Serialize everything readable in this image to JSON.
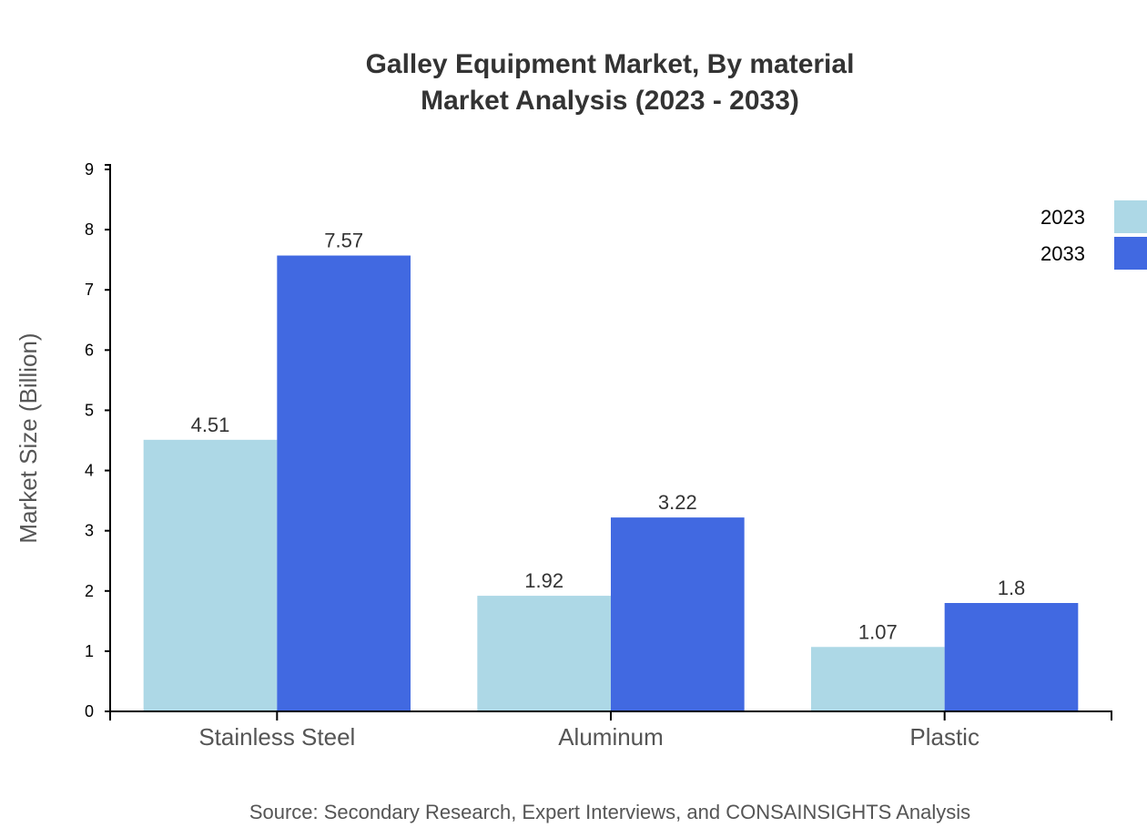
{
  "chart_data": {
    "type": "bar",
    "title": "Galley Equipment Market, By material",
    "subtitle": "Market Analysis (2023 - 2033)",
    "xlabel": "",
    "ylabel": "Market Size (Billion)",
    "ylim": [
      0,
      9
    ],
    "yticks": [
      0,
      1,
      2,
      3,
      4,
      5,
      6,
      7,
      8,
      9
    ],
    "grid": false,
    "legend_position": "top-right",
    "categories": [
      "Stainless Steel",
      "Aluminum",
      "Plastic"
    ],
    "series": [
      {
        "name": "2023",
        "color": "#add8e6",
        "values": [
          4.51,
          1.92,
          1.07
        ]
      },
      {
        "name": "2033",
        "color": "#4169e1",
        "values": [
          7.57,
          3.22,
          1.8
        ]
      }
    ],
    "source": "Source: Secondary Research, Expert Interviews, and CONSAINSIGHTS Analysis"
  }
}
